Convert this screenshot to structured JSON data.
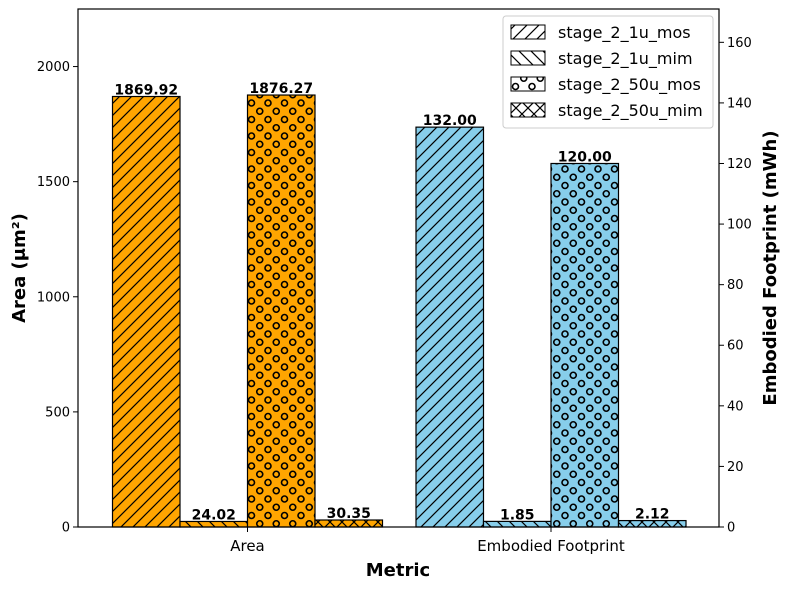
{
  "chart_data": {
    "type": "bar",
    "categories": [
      "Area",
      "Embodied Footprint"
    ],
    "xlabel": "Metric",
    "ylabel_left": "Area (μm²)",
    "ylabel_right": "Embodied Footprint (mWh)",
    "ylim_left": [
      0,
      2250
    ],
    "ylim_right": [
      0,
      171
    ],
    "yticks_left": [
      "0",
      "500",
      "1000",
      "1500",
      "2000"
    ],
    "yticks_right": [
      "0",
      "20",
      "40",
      "60",
      "80",
      "100",
      "120",
      "140",
      "160"
    ],
    "category_colors": [
      "#FFA500",
      "#87CEEB"
    ],
    "grid": false,
    "legend_position": "top-right",
    "series": [
      {
        "name": "stage_2_1u_mos",
        "hatch": "diagonal-forward",
        "values": [
          1869.92,
          132.0
        ],
        "labels": [
          "1869.92",
          "132.00"
        ]
      },
      {
        "name": "stage_2_1u_mim",
        "hatch": "diagonal-backward",
        "values": [
          24.02,
          1.85
        ],
        "labels": [
          "24.02",
          "1.85"
        ]
      },
      {
        "name": "stage_2_50u_mos",
        "hatch": "circles",
        "values": [
          1876.27,
          120.0
        ],
        "labels": [
          "1876.27",
          "120.00"
        ]
      },
      {
        "name": "stage_2_50u_mim",
        "hatch": "crosshatch",
        "values": [
          30.35,
          2.12
        ],
        "labels": [
          "30.35",
          "2.12"
        ]
      }
    ]
  }
}
